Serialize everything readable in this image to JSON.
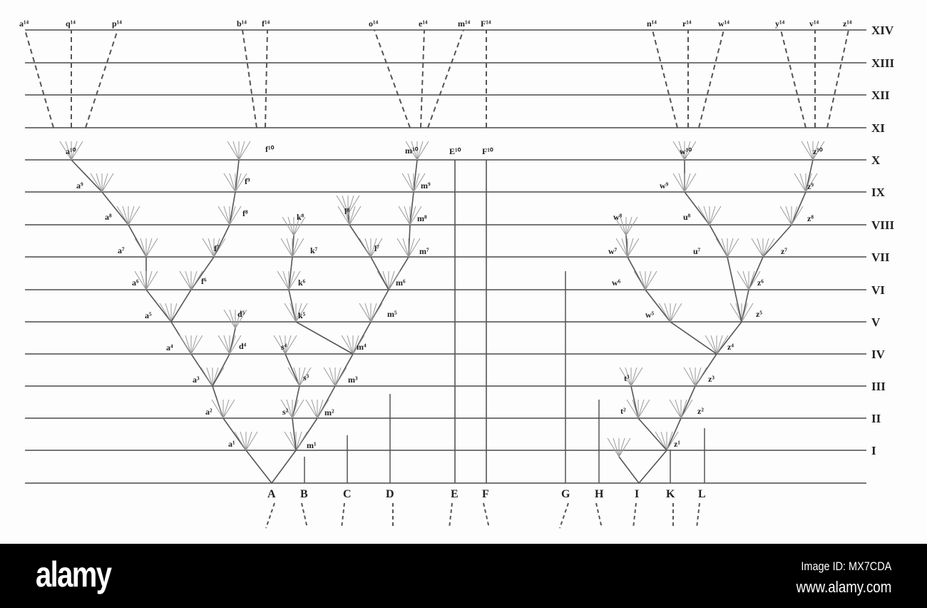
{
  "diagram": {
    "levels": [
      "XIV",
      "XIII",
      "XII",
      "XI",
      "X",
      "IX",
      "VIII",
      "VII",
      "VI",
      "V",
      "IV",
      "III",
      "II",
      "I"
    ],
    "species": [
      "A",
      "B",
      "C",
      "D",
      "E",
      "F",
      "G",
      "H",
      "I",
      "K",
      "L"
    ],
    "top_labels": [
      "a¹⁴",
      "q¹⁴",
      "p¹⁴",
      "b¹⁴",
      "f¹⁴",
      "o¹⁴",
      "e¹⁴",
      "m¹⁴",
      "F¹⁴",
      "n¹⁴",
      "r¹⁴",
      "w¹⁴",
      "y¹⁴",
      "v¹⁴",
      "z¹⁴"
    ],
    "node_labels": [
      "a¹",
      "a²",
      "a³",
      "a⁴",
      "a⁵",
      "a⁶",
      "a⁷",
      "a⁸",
      "a⁹",
      "a¹⁰",
      "d⁴",
      "d⁵",
      "f⁶",
      "f⁷",
      "f⁸",
      "f⁹",
      "f¹⁰",
      "m¹",
      "m²",
      "m³",
      "m⁴",
      "m⁵",
      "m⁶",
      "m⁷",
      "m⁸",
      "m⁹",
      "m¹⁰",
      "k⁵",
      "k⁶",
      "k⁷",
      "k⁸",
      "l⁷",
      "l⁸",
      "s²",
      "s³",
      "s⁴",
      "E¹⁰",
      "F¹⁰",
      "z¹",
      "z²",
      "z³",
      "z⁴",
      "z⁵",
      "z⁶",
      "z⁷",
      "z⁸",
      "z⁹",
      "z¹⁰",
      "w⁵",
      "w⁶",
      "w⁷",
      "w⁸",
      "u⁷",
      "u⁸",
      "w⁹",
      "w¹⁰",
      "t²",
      "t³"
    ],
    "line_color": "#555555"
  },
  "footer": {
    "logo": "alamy",
    "image_id": "Image ID: MX7CDA",
    "site": "www.alamy.com"
  }
}
